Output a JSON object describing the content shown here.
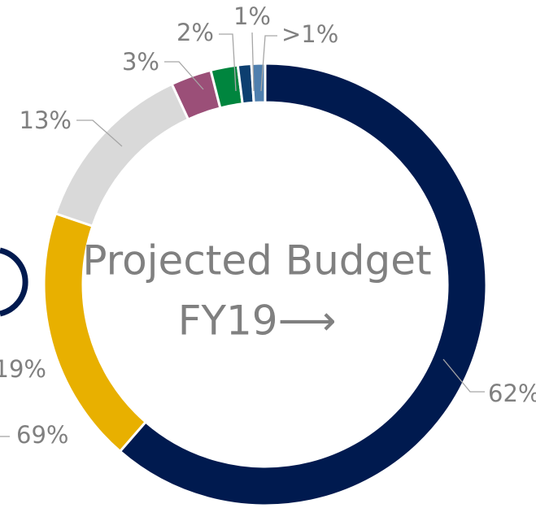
{
  "chart_data": {
    "type": "donut",
    "title": "Projected Budget",
    "subtitle": "FY19⟶",
    "values": [
      62,
      19,
      13,
      3,
      2,
      1,
      1
    ],
    "value_labels": [
      "62%",
      "19%",
      "13%",
      "3%",
      "2%",
      "1%",
      ">1%"
    ],
    "colors": [
      "#001a4f",
      "#e8b000",
      "#d9d9d9",
      "#9b4f78",
      "#00853e",
      "#0d3f70",
      "#4f7fae"
    ],
    "annotations": [
      "69%"
    ]
  }
}
